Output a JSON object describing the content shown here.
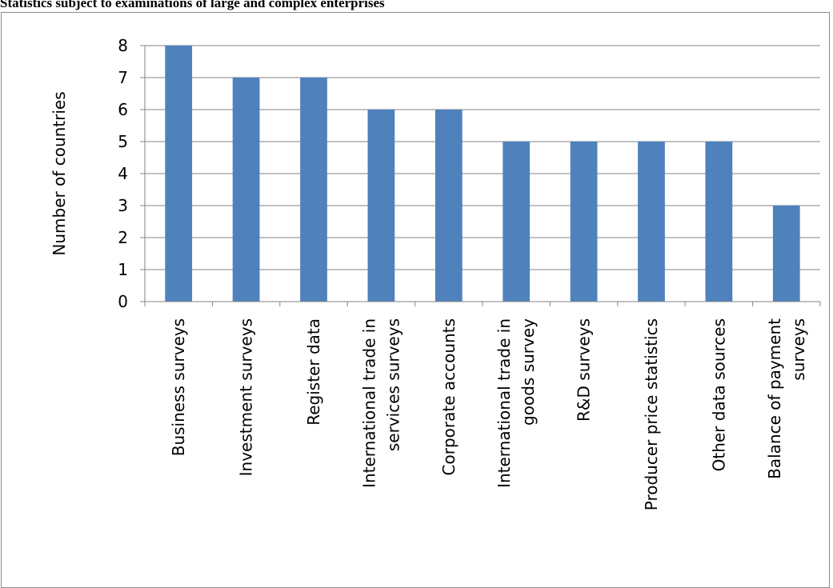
{
  "page": {
    "title": "Statistics subject to examinations of large and complex enterprises"
  },
  "chart_data": {
    "type": "bar",
    "title": "Statistics subject to examinations of large and complex enterprises",
    "ylabel": "Number of countries",
    "xlabel": "",
    "ylim": [
      0,
      8
    ],
    "yticks": [
      0,
      1,
      2,
      3,
      4,
      5,
      6,
      7,
      8
    ],
    "grid": true,
    "legend": "none",
    "bar_color": "#4f81bd",
    "categories": [
      [
        "Business surveys"
      ],
      [
        "Investment surveys"
      ],
      [
        "Register data"
      ],
      [
        "International trade in",
        "services surveys"
      ],
      [
        "Corporate accounts"
      ],
      [
        "International trade in",
        "goods survey"
      ],
      [
        "R&D surveys"
      ],
      [
        "Producer price statistics"
      ],
      [
        "Other data sources"
      ],
      [
        "Balance of payment",
        "surveys"
      ]
    ],
    "values": [
      8,
      7,
      7,
      6,
      6,
      5,
      5,
      5,
      5,
      3
    ]
  }
}
